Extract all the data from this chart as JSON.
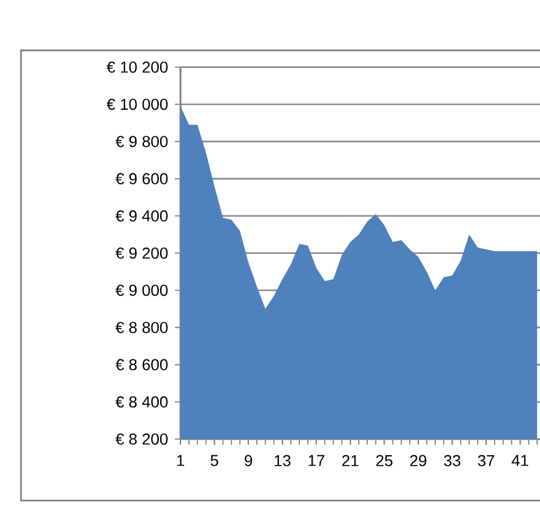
{
  "chart_data": {
    "type": "area",
    "categories": [
      "1",
      null,
      null,
      null,
      "5",
      null,
      null,
      null,
      "9",
      null,
      null,
      null,
      "13",
      null,
      null,
      null,
      "17",
      null,
      null,
      null,
      "21",
      null,
      null,
      null,
      "25",
      null,
      null,
      null,
      "29",
      null,
      null,
      null,
      "33",
      null,
      null,
      null,
      "37",
      null,
      null,
      null,
      "41",
      null,
      null
    ],
    "values": [
      9990,
      9890,
      9890,
      9740,
      9560,
      9390,
      9380,
      9320,
      9150,
      9020,
      8900,
      8970,
      9060,
      9140,
      9250,
      9240,
      9120,
      9050,
      9060,
      9190,
      9260,
      9300,
      9370,
      9410,
      9350,
      9260,
      9270,
      9220,
      9180,
      9100,
      9000,
      9070,
      9080,
      9160,
      9300,
      9230,
      9220,
      9210,
      9210,
      9210,
      9210,
      9210,
      9210
    ],
    "color": "#4f81bd",
    "ylim": [
      8200,
      10200
    ],
    "yticks": [
      {
        "value": 8200,
        "label": "€ 8 200"
      },
      {
        "value": 8400,
        "label": "€ 8 400"
      },
      {
        "value": 8600,
        "label": "€ 8 600"
      },
      {
        "value": 8800,
        "label": "€ 8 800"
      },
      {
        "value": 9000,
        "label": "€ 9 000"
      },
      {
        "value": 9200,
        "label": "€ 9 200"
      },
      {
        "value": 9400,
        "label": "€ 9 400"
      },
      {
        "value": 9600,
        "label": "€ 9 600"
      },
      {
        "value": 9800,
        "label": "€ 9 800"
      },
      {
        "value": 10000,
        "label": "€ 10 000"
      },
      {
        "value": 10200,
        "label": "€ 10 200"
      }
    ],
    "grid": "y"
  }
}
